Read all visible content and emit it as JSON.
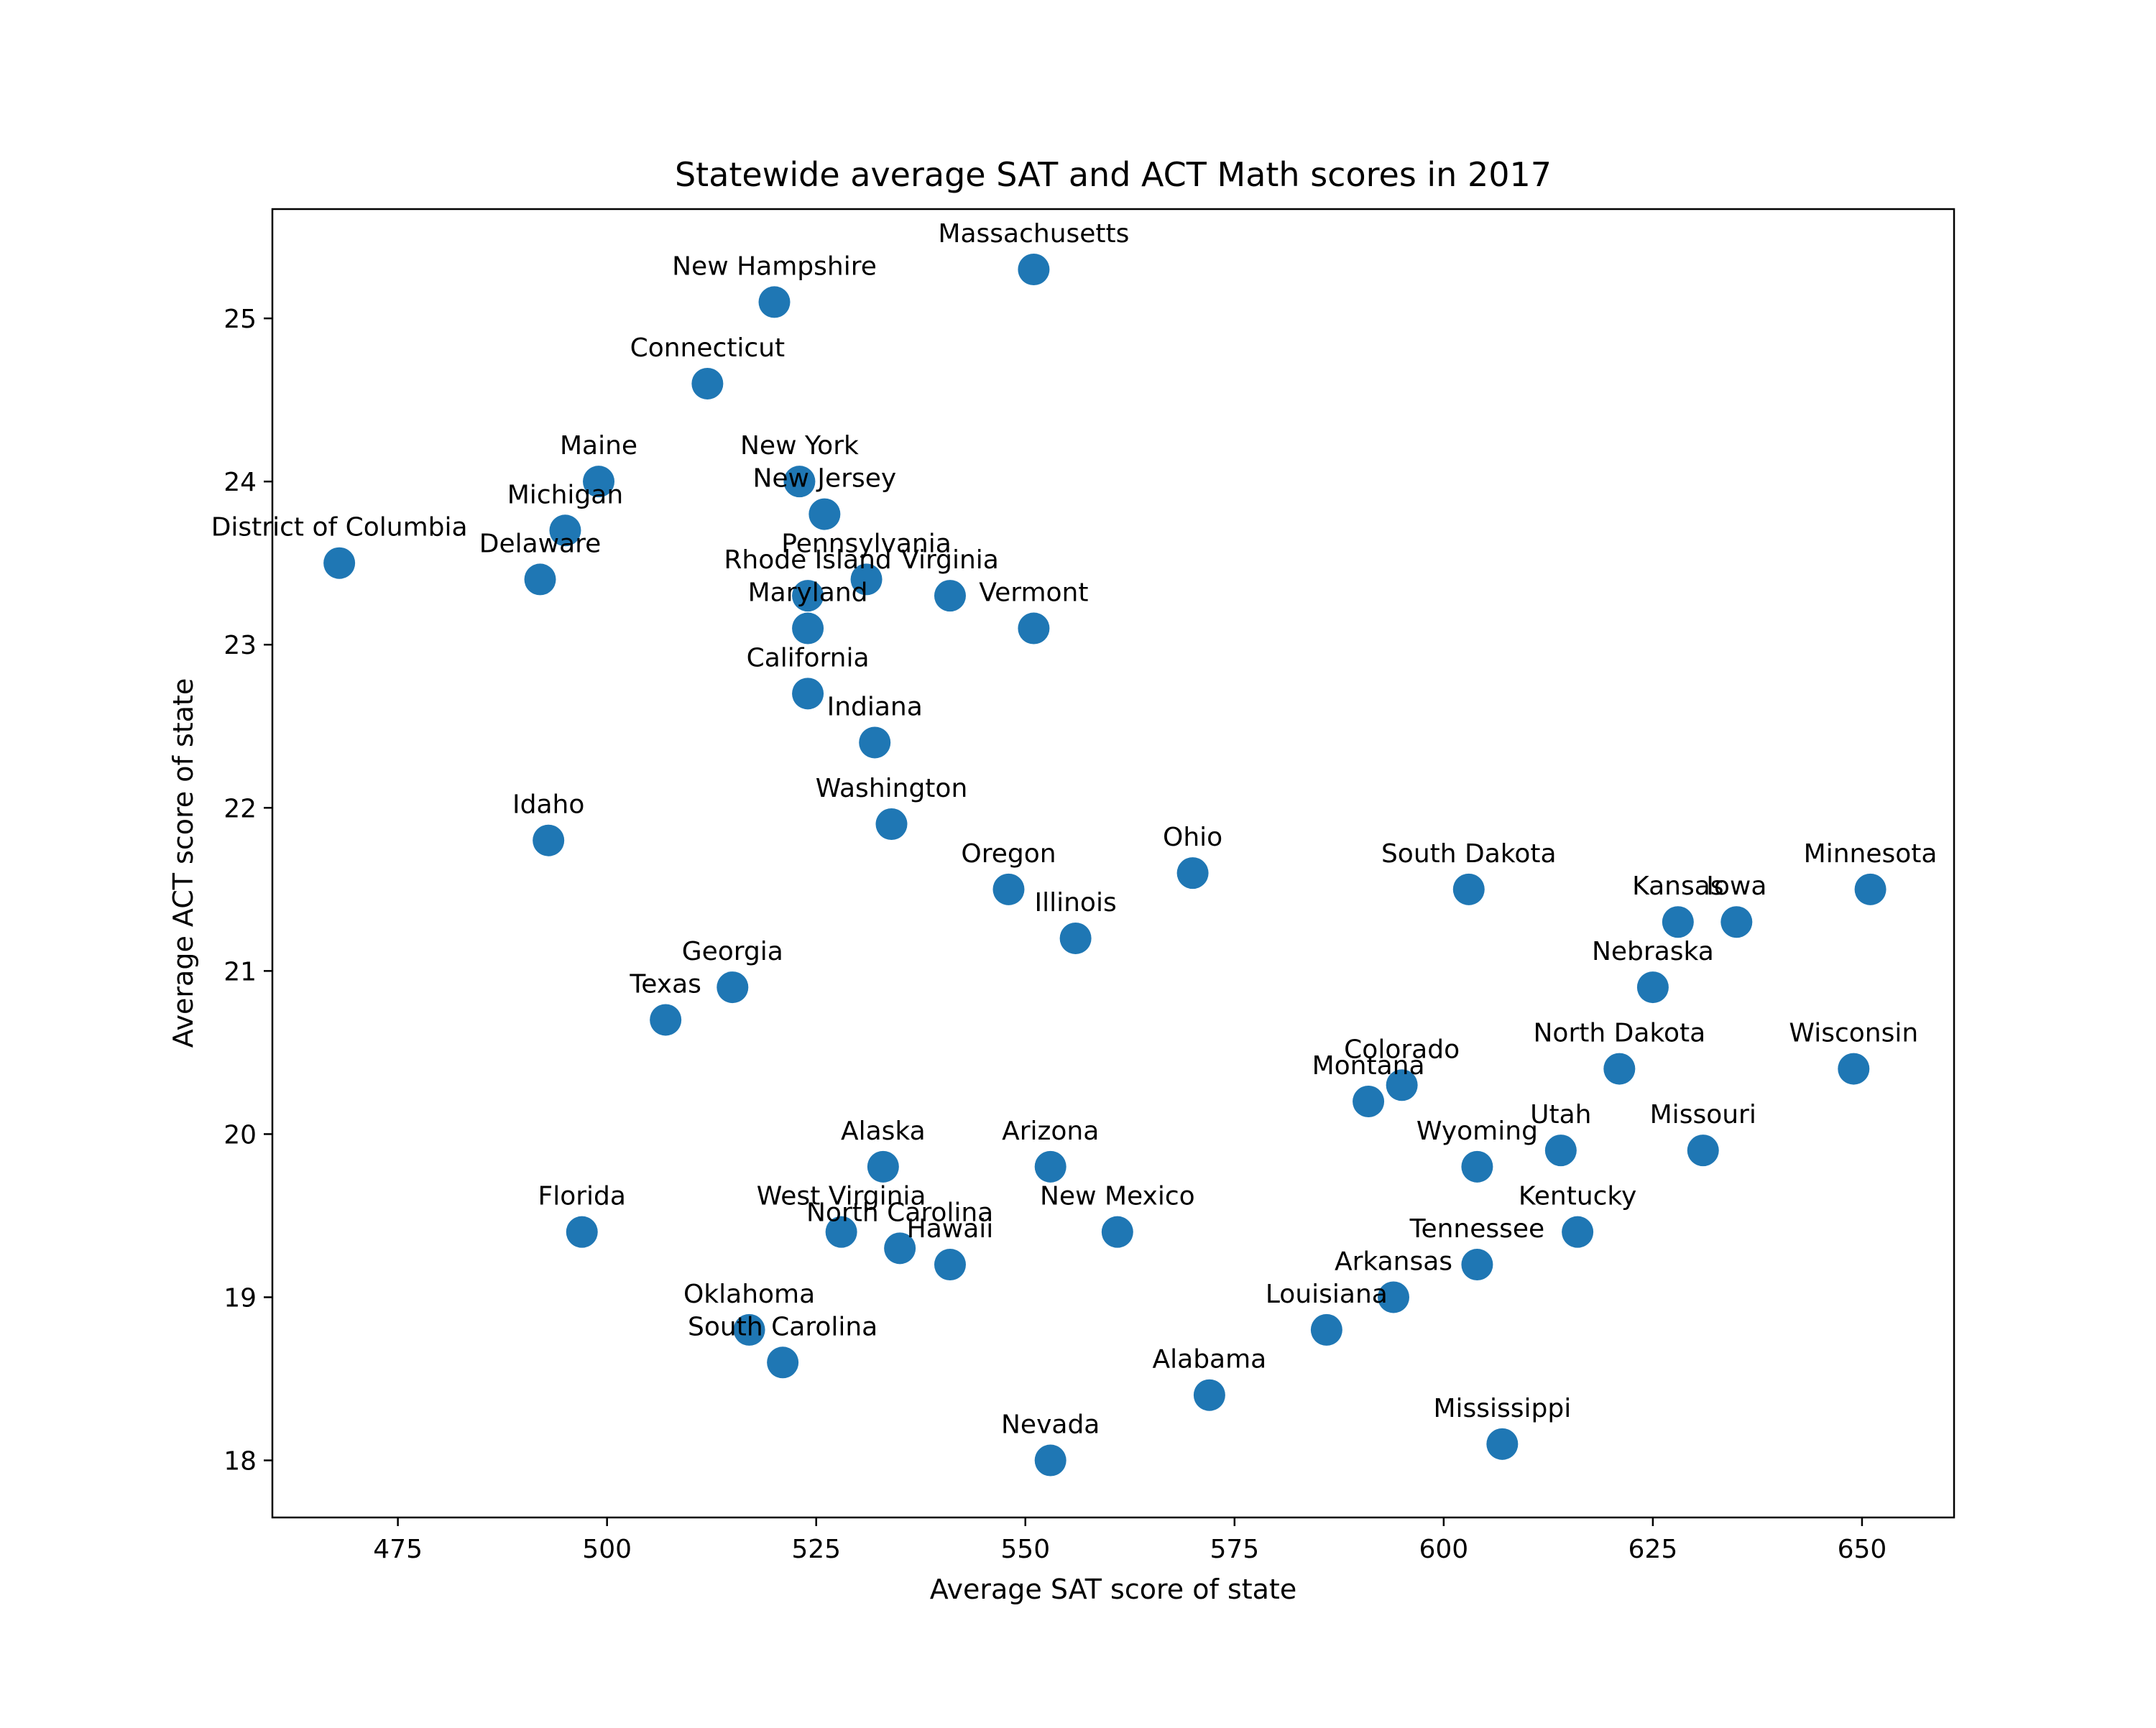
{
  "chart_data": {
    "type": "scatter",
    "title": "Statewide average SAT and ACT Math scores in 2017",
    "xlabel": "Average SAT score of state",
    "ylabel": "Average ACT score of state",
    "xlim": [
      460,
      661
    ],
    "ylim": [
      17.65,
      25.67
    ],
    "xticks": [
      "475",
      "500",
      "525",
      "550",
      "575",
      "600",
      "625",
      "650"
    ],
    "yticks": [
      "18",
      "19",
      "20",
      "21",
      "22",
      "23",
      "24",
      "25"
    ],
    "grid": false,
    "marker_color": "#1f77b4",
    "points": [
      {
        "label": "Massachusetts",
        "x": 551,
        "y": 25.3
      },
      {
        "label": "New Hampshire",
        "x": 520,
        "y": 25.1
      },
      {
        "label": "Connecticut",
        "x": 512,
        "y": 24.6
      },
      {
        "label": "Maine",
        "x": 499,
        "y": 24.0
      },
      {
        "label": "New York",
        "x": 523,
        "y": 24.0
      },
      {
        "label": "New Jersey",
        "x": 526,
        "y": 23.8
      },
      {
        "label": "Michigan",
        "x": 495,
        "y": 23.7
      },
      {
        "label": "District of Columbia",
        "x": 468,
        "y": 23.5
      },
      {
        "label": "Delaware",
        "x": 492,
        "y": 23.4
      },
      {
        "label": "Pennsylvania",
        "x": 531,
        "y": 23.4
      },
      {
        "label": "Rhode Island",
        "x": 524,
        "y": 23.3
      },
      {
        "label": "Virginia",
        "x": 541,
        "y": 23.3
      },
      {
        "label": "Maryland",
        "x": 524,
        "y": 23.1
      },
      {
        "label": "Vermont",
        "x": 551,
        "y": 23.1
      },
      {
        "label": "California",
        "x": 524,
        "y": 22.7
      },
      {
        "label": "Indiana",
        "x": 532,
        "y": 22.4
      },
      {
        "label": "Washington",
        "x": 534,
        "y": 21.9
      },
      {
        "label": "Idaho",
        "x": 493,
        "y": 21.8
      },
      {
        "label": "Ohio",
        "x": 570,
        "y": 21.6
      },
      {
        "label": "Oregon",
        "x": 548,
        "y": 21.5
      },
      {
        "label": "South Dakota",
        "x": 603,
        "y": 21.5
      },
      {
        "label": "Minnesota",
        "x": 651,
        "y": 21.5
      },
      {
        "label": "Kansas",
        "x": 628,
        "y": 21.3
      },
      {
        "label": "Iowa",
        "x": 635,
        "y": 21.3
      },
      {
        "label": "Illinois",
        "x": 556,
        "y": 21.2
      },
      {
        "label": "Georgia",
        "x": 515,
        "y": 20.9
      },
      {
        "label": "Nebraska",
        "x": 625,
        "y": 20.9
      },
      {
        "label": "Texas",
        "x": 507,
        "y": 20.7
      },
      {
        "label": "North Dakota",
        "x": 621,
        "y": 20.4
      },
      {
        "label": "Wisconsin",
        "x": 649,
        "y": 20.4
      },
      {
        "label": "Colorado",
        "x": 595,
        "y": 20.3
      },
      {
        "label": "Montana",
        "x": 591,
        "y": 20.2
      },
      {
        "label": "Utah",
        "x": 614,
        "y": 19.9
      },
      {
        "label": "Missouri",
        "x": 631,
        "y": 19.9
      },
      {
        "label": "Alaska",
        "x": 533,
        "y": 19.8
      },
      {
        "label": "Arizona",
        "x": 553,
        "y": 19.8
      },
      {
        "label": "Wyoming",
        "x": 604,
        "y": 19.8
      },
      {
        "label": "Florida",
        "x": 497,
        "y": 19.4
      },
      {
        "label": "West Virginia",
        "x": 528,
        "y": 19.4
      },
      {
        "label": "New Mexico",
        "x": 561,
        "y": 19.4
      },
      {
        "label": "Kentucky",
        "x": 616,
        "y": 19.4
      },
      {
        "label": "North Carolina",
        "x": 535,
        "y": 19.3
      },
      {
        "label": "Hawaii",
        "x": 541,
        "y": 19.2
      },
      {
        "label": "Tennessee",
        "x": 604,
        "y": 19.2
      },
      {
        "label": "Arkansas",
        "x": 594,
        "y": 19.0
      },
      {
        "label": "Oklahoma",
        "x": 517,
        "y": 18.8
      },
      {
        "label": "Louisiana",
        "x": 586,
        "y": 18.8
      },
      {
        "label": "South Carolina",
        "x": 521,
        "y": 18.6
      },
      {
        "label": "Alabama",
        "x": 572,
        "y": 18.4
      },
      {
        "label": "Mississippi",
        "x": 607,
        "y": 18.1
      },
      {
        "label": "Nevada",
        "x": 553,
        "y": 18.0
      }
    ]
  }
}
